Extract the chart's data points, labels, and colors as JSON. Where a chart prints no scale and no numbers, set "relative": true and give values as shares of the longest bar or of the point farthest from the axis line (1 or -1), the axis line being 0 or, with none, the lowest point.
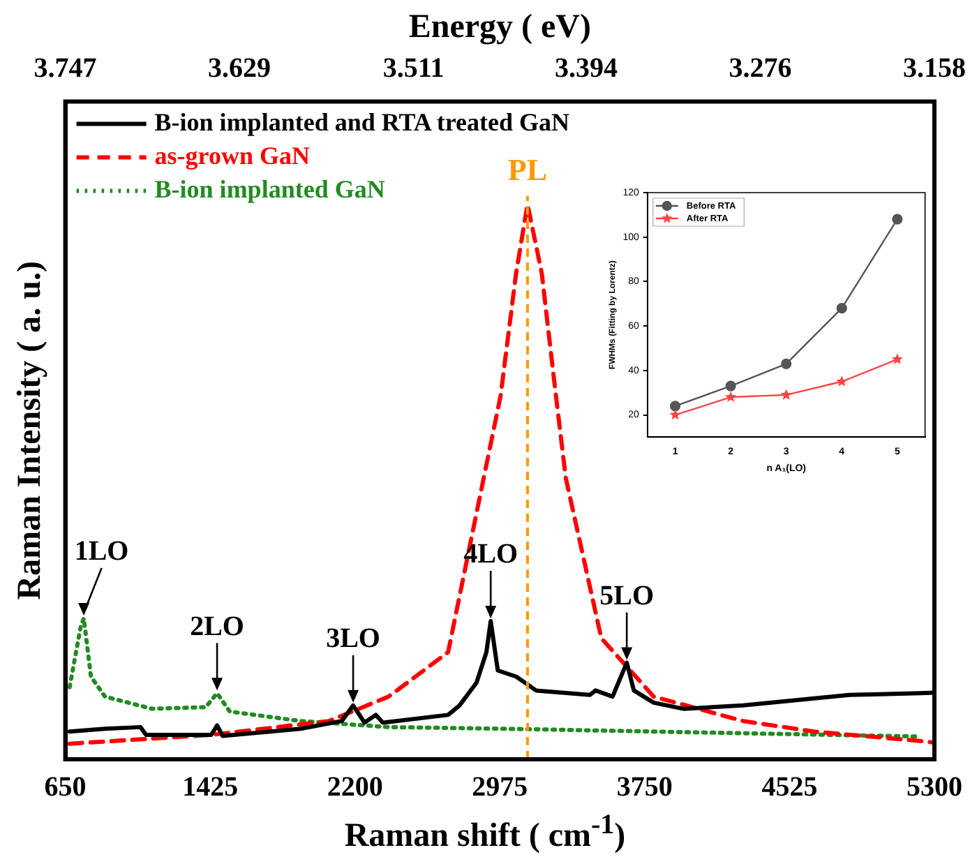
{
  "chart_data": [
    {
      "type": "line",
      "xlabel": "Raman shift ( cm$^{-1}$)",
      "ylabel": "Raman Intensity ( a. u.)",
      "x2label": "Energy ( eV)",
      "relative": true,
      "legend": "top left",
      "grid": false,
      "marker": "none",
      "xlim": [
        650,
        5300
      ],
      "xticks": [
        650,
        1425,
        2200,
        2975,
        3750,
        4525,
        5300
      ],
      "x2lim": [
        3.747,
        3.158
      ],
      "x2ticks": [
        3.747,
        3.629,
        3.511,
        3.394,
        3.276,
        3.158
      ],
      "series": [
        {
          "name": "B-ion implanted and RTA treated GaN",
          "color": "#000000",
          "line_style": "solid",
          "x": [
            673,
            862,
            1052,
            1082,
            1431,
            1462,
            1492,
            1909,
            2129,
            2190,
            2251,
            2311,
            2349,
            2698,
            2759,
            2850,
            2903,
            2926,
            2964,
            3062,
            3169,
            3457,
            3487,
            3578,
            3654,
            3692,
            3798,
            3957,
            4276,
            4845,
            5224,
            5300
          ],
          "values": [
            0.05,
            0.055,
            0.058,
            0.044,
            0.044,
            0.061,
            0.042,
            0.055,
            0.069,
            0.097,
            0.066,
            0.08,
            0.066,
            0.08,
            0.097,
            0.138,
            0.193,
            0.249,
            0.16,
            0.149,
            0.124,
            0.116,
            0.124,
            0.113,
            0.174,
            0.124,
            0.102,
            0.091,
            0.097,
            0.116,
            0.119,
            0.12
          ]
        },
        {
          "name": "as-grown GaN",
          "color": "#ff0000",
          "line_style": "dashed",
          "x": [
            673,
            1431,
            2061,
            2380,
            2698,
            2888,
            2979,
            3062,
            3123,
            3199,
            3275,
            3328,
            3518,
            3798,
            4276,
            4655,
            5224,
            5300
          ],
          "values": [
            0.028,
            0.044,
            0.069,
            0.113,
            0.193,
            0.506,
            0.655,
            0.876,
            1,
            0.876,
            0.655,
            0.506,
            0.218,
            0.113,
            0.069,
            0.05,
            0.033,
            0.03
          ]
        },
        {
          "name": "B-ion implanted GaN",
          "color": "#228b22",
          "line_style": "dotted",
          "x": [
            673,
            733,
            749,
            787,
            862,
            1113,
            1401,
            1462,
            1530,
            1909,
            2380,
            3009,
            5224
          ],
          "values": [
            0.13,
            0.24,
            0.254,
            0.149,
            0.113,
            0.091,
            0.094,
            0.119,
            0.086,
            0.069,
            0.058,
            0.055,
            0.041
          ]
        }
      ],
      "ref_lines": [
        {
          "axis": "x",
          "value": 3123,
          "label": "PL",
          "color": "#ff9900",
          "line_style": "dashed"
        }
      ],
      "annotations": [
        {
          "text": "1LO",
          "x": 749,
          "y": 0.254
        },
        {
          "text": "2LO",
          "x": 1462,
          "y": 0.119
        },
        {
          "text": "3LO",
          "x": 2190,
          "y": 0.097
        },
        {
          "text": "4LO",
          "x": 2926,
          "y": 0.249
        },
        {
          "text": "5LO",
          "x": 3654,
          "y": 0.174
        }
      ]
    },
    {
      "type": "line",
      "xlabel": "n A₁(LO)",
      "ylabel": "FWHMs (Fitting by Lorentz)",
      "legend": "top left",
      "grid": false,
      "x": [
        1,
        2,
        3,
        4,
        5
      ],
      "xlim": [
        0.5,
        5.5
      ],
      "xticks": [
        1,
        2,
        3,
        4,
        5
      ],
      "ylim": [
        10,
        120
      ],
      "yticks": [
        20,
        40,
        60,
        80,
        100,
        120
      ],
      "series": [
        {
          "name": "Before RTA",
          "color": "#555555",
          "marker": "circle",
          "values": [
            24,
            33,
            43,
            68,
            108
          ]
        },
        {
          "name": "After RTA",
          "color": "#ff4444",
          "marker": "star",
          "values": [
            20,
            28,
            29,
            35,
            45
          ]
        }
      ]
    }
  ]
}
